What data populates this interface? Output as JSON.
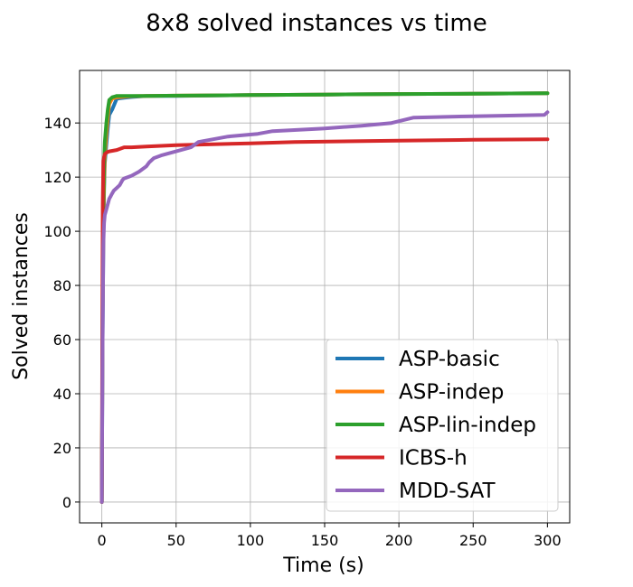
{
  "chart_data": {
    "type": "line",
    "title": "8x8 solved instances vs time",
    "xlabel": "Time (s)",
    "ylabel": "Solved instances",
    "xlim": [
      -15,
      315
    ],
    "ylim": [
      -7.7,
      159.4
    ],
    "xticks": [
      0,
      50,
      100,
      150,
      200,
      250,
      300
    ],
    "yticks": [
      0,
      20,
      40,
      60,
      80,
      100,
      120,
      140
    ],
    "grid": true,
    "legend_position": "lower-right",
    "series": [
      {
        "name": "ASP-basic",
        "color": "#1f77b4",
        "x": [
          0,
          0.5,
          1,
          1.5,
          2,
          3,
          4,
          5,
          7,
          10,
          15,
          20,
          30,
          50,
          100,
          150,
          200,
          250,
          300
        ],
        "y": [
          0,
          60,
          95,
          115,
          125,
          132,
          138,
          143,
          145,
          149,
          149.3,
          149.6,
          150,
          150,
          150.3,
          150.5,
          150.7,
          150.8,
          151
        ]
      },
      {
        "name": "ASP-indep",
        "color": "#ff7f0e",
        "x": [
          0,
          0.5,
          1,
          1.5,
          2,
          3,
          4,
          5,
          7,
          10,
          15,
          20,
          30,
          50,
          100,
          150,
          200,
          250,
          300
        ],
        "y": [
          0,
          70,
          100,
          118,
          128,
          136,
          142,
          147,
          149,
          149.5,
          149.7,
          149.9,
          150,
          150.1,
          150.3,
          150.5,
          150.7,
          150.8,
          151
        ]
      },
      {
        "name": "ASP-lin-indep",
        "color": "#2ca02c",
        "x": [
          0,
          0.5,
          1,
          1.5,
          2,
          3,
          4,
          5,
          7,
          10,
          20,
          30,
          50,
          100,
          150,
          200,
          250,
          300
        ],
        "y": [
          0,
          80,
          110,
          125,
          133,
          140,
          145,
          148.5,
          149.5,
          150,
          150,
          150,
          150.1,
          150.3,
          150.5,
          150.7,
          150.8,
          151
        ]
      },
      {
        "name": "ICBS-h",
        "color": "#d62728",
        "x": [
          0,
          0.3,
          0.6,
          1,
          1.5,
          2,
          3,
          5,
          10,
          15,
          20,
          30,
          50,
          100,
          130,
          200,
          250,
          300
        ],
        "y": [
          0,
          60,
          110,
          126,
          127.5,
          128.5,
          129,
          129.5,
          130,
          131,
          131,
          131.3,
          131.8,
          132.5,
          133,
          133.5,
          133.8,
          134
        ]
      },
      {
        "name": "MDD-SAT",
        "color": "#9467bd",
        "x": [
          0,
          0.5,
          1,
          1.5,
          2,
          3,
          4,
          5,
          6,
          7,
          8,
          10,
          12,
          14,
          15,
          20,
          25,
          30,
          32,
          35,
          40,
          50,
          60,
          65,
          70,
          85,
          105,
          115,
          150,
          175,
          195,
          210,
          250,
          298,
          300
        ],
        "y": [
          0,
          60,
          95,
          103,
          106,
          108,
          110,
          112,
          113,
          114,
          115,
          116,
          117,
          119,
          119.5,
          120.5,
          122,
          124,
          125.5,
          127,
          128,
          129.5,
          131,
          133,
          133.5,
          135,
          136,
          137,
          138,
          139,
          140,
          142,
          142.5,
          143,
          144
        ]
      }
    ]
  }
}
